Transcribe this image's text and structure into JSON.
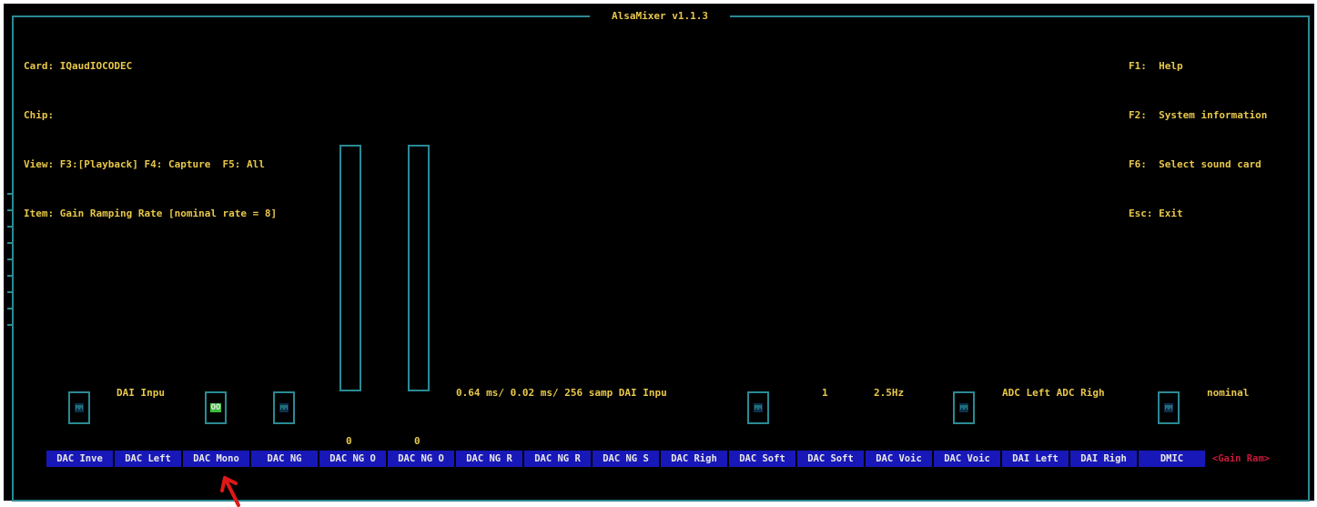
{
  "title": "AlsaMixer v1.1.3",
  "info_left": {
    "card_label": "Card:",
    "card_value": "IQaudIOCODEC",
    "chip_label": "Chip:",
    "chip_value": "",
    "view_label": "View:",
    "view_value": "F3:[Playback] F4: Capture  F5: All",
    "item_label": "Item:",
    "item_value": "Gain Ramping Rate [nominal rate = 8]"
  },
  "info_right": {
    "f1_key": "F1:",
    "f1_text": "Help",
    "f2_key": "F2:",
    "f2_text": "System information",
    "f6_key": "F6:",
    "f6_text": "Select sound card",
    "esc_key": "Esc:",
    "esc_text": "Exit"
  },
  "switches": [
    {
      "id": "sw1",
      "text": "MM"
    },
    {
      "id": "sw2",
      "text": "OO"
    },
    {
      "id": "sw3",
      "text": "MM"
    },
    {
      "id": "sw4",
      "text": "MM"
    },
    {
      "id": "sw5",
      "text": "MM"
    },
    {
      "id": "sw6",
      "text": "MM"
    }
  ],
  "value_labels": {
    "dai_inpu_1": "DAI Inpu",
    "timing": "0.64 ms/ 0.02 ms/ 256 samp DAI Inpu",
    "one": "1",
    "freq": "2.5Hz",
    "adc": "ADC Left ADC Righ",
    "nominal": "nominal"
  },
  "bar_values": [
    "0",
    "0"
  ],
  "controls": [
    "DAC Inve",
    "DAC Left",
    "DAC Mono",
    "DAC NG",
    "DAC NG O",
    "DAC NG O",
    "DAC NG R",
    "DAC NG R",
    "DAC NG S",
    "DAC Righ",
    "DAC Soft",
    "DAC Soft",
    "DAC Voic",
    "DAC Voic",
    "DAI Left",
    "DAI Righ",
    "DMIC",
    "Gain Ram"
  ],
  "colors": {
    "frame": "#2a8a94",
    "text": "#e8c84a",
    "tab_bg": "#1818b8",
    "selected": "#c8183c",
    "annotation": "#e01818"
  }
}
